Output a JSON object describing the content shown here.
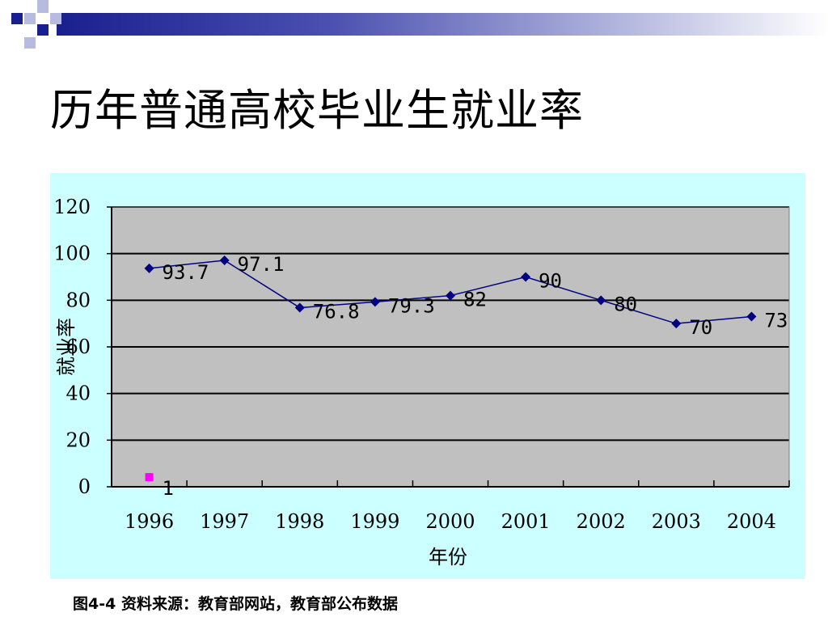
{
  "slide": {
    "title": "历年普通高校毕业生就业率",
    "caption": "图4-4  资料来源：教育部网站，教育部公布数据"
  },
  "colors": {
    "header_bar": "#1a1f8f",
    "chart_background": "#ccffff",
    "plot_background": "#c0c0c0",
    "line": "#000080",
    "extra_marker": "#ff00ff"
  },
  "chart_data": {
    "type": "line",
    "categories": [
      "1996",
      "1997",
      "1998",
      "1999",
      "2000",
      "2001",
      "2002",
      "2003",
      "2004"
    ],
    "series": [
      {
        "values": [
          93.7,
          97.1,
          76.8,
          79.3,
          82,
          90,
          80,
          70,
          73
        ],
        "data_labels": [
          "93.7",
          "97.1",
          "76.8",
          "79.3",
          "82",
          "90",
          "80",
          "70",
          "73"
        ],
        "color": "#000080",
        "marker": "diamond"
      },
      {
        "values": [
          1,
          null,
          null,
          null,
          null,
          null,
          null,
          null,
          null
        ],
        "data_labels": [
          "1",
          "",
          "",
          "",
          "",
          "",
          "",
          "",
          ""
        ],
        "color": "#ff00ff",
        "marker": "square"
      }
    ],
    "xlabel": "年份",
    "ylabel": "就业率",
    "ylim": [
      0,
      120
    ],
    "yticks": [
      0,
      20,
      40,
      60,
      80,
      100,
      120
    ],
    "grid": true,
    "legend": "none"
  }
}
